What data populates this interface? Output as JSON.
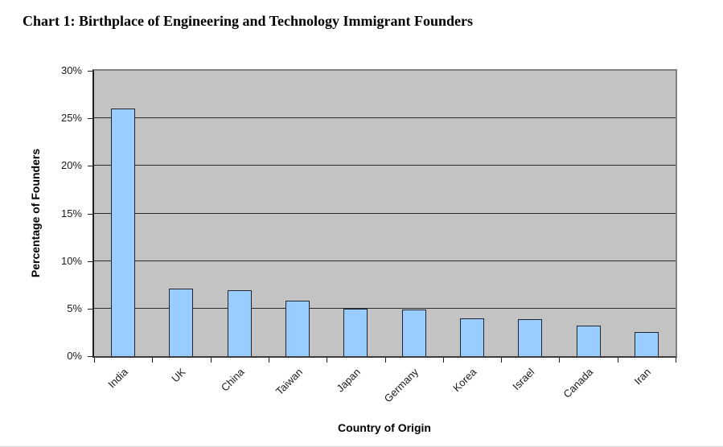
{
  "page": {
    "title": "Chart 1: Birthplace of Engineering and Technology Immigrant Founders"
  },
  "chart_data": {
    "type": "bar",
    "title": "Chart 1: Birthplace of Engineering and Technology Immigrant Founders",
    "categories": [
      "India",
      "UK",
      "China",
      "Taiwan",
      "Japan",
      "Germany",
      "Korea",
      "Israel",
      "Canada",
      "Iran"
    ],
    "values": [
      26,
      7.1,
      6.9,
      5.8,
      5.0,
      4.9,
      4.0,
      3.9,
      3.2,
      2.5
    ],
    "xlabel": "Country of Origin",
    "ylabel": "Percentage of Founders",
    "ylim": [
      0,
      30
    ],
    "yticks": {
      "values": [
        0,
        5,
        10,
        15,
        20,
        25,
        30
      ],
      "labels": [
        "0%",
        "5%",
        "10%",
        "15%",
        "20%",
        "25%",
        "30%"
      ]
    },
    "grid": true,
    "legend": false,
    "colors": {
      "bar_fill": "#99CCFF",
      "bar_border": "#1f2430",
      "plot_bg": "#C3C3C3",
      "gridline": "#2b2b2b",
      "plot_border": "#808080"
    }
  }
}
